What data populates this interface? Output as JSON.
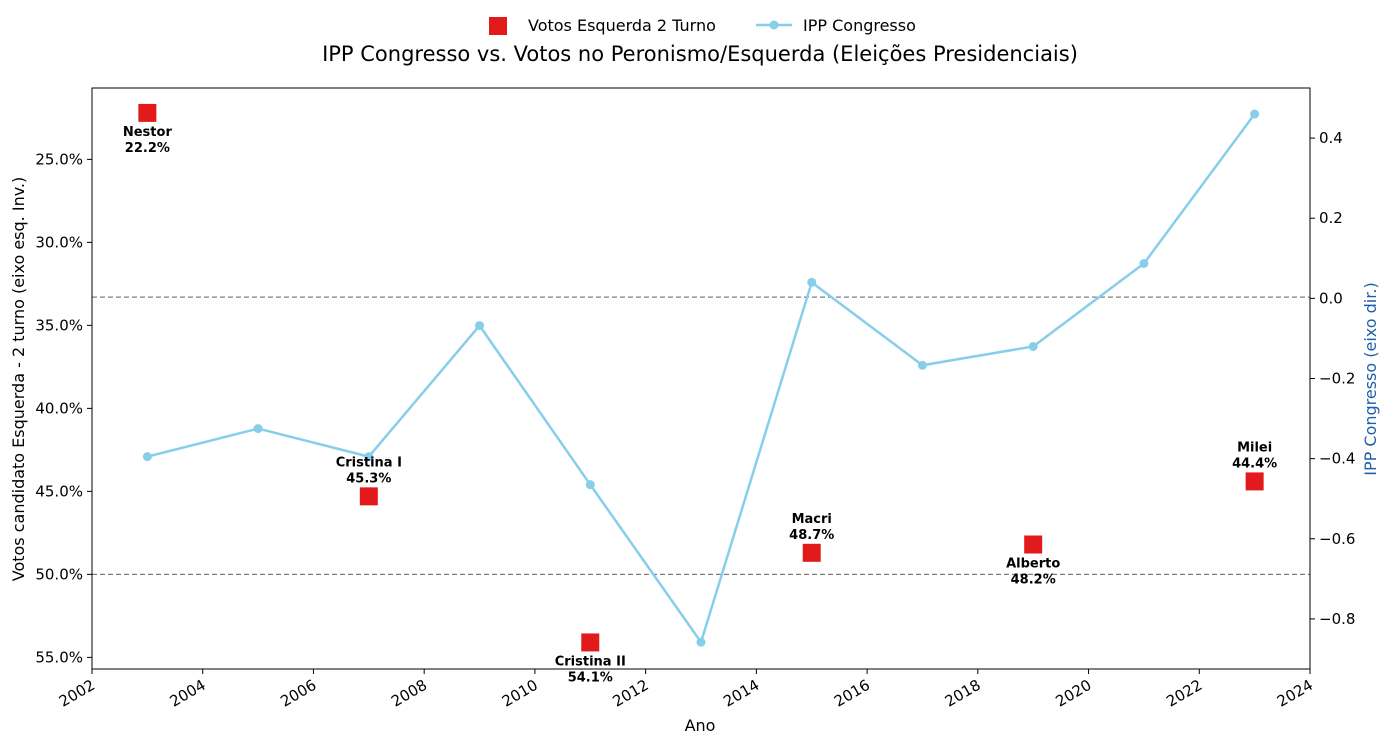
{
  "chart_data": {
    "type": "line",
    "title": "IPP Congresso vs. Votos no Peronismo/Esquerda (Eleições Presidenciais)",
    "xlabel": "Ano",
    "ylabel_left": "Votos candidato Esquerda - 2 turno (eixo esq. Inv.)",
    "ylabel_right": "IPP Congresso (eixo dir.)",
    "xlim": [
      2002,
      2024
    ],
    "x_ticks": [
      2002,
      2004,
      2006,
      2008,
      2010,
      2012,
      2014,
      2016,
      2018,
      2020,
      2022,
      2024
    ],
    "left_axis": {
      "inverted": true,
      "lim": [
        20.7,
        55.7
      ],
      "ticks": [
        25,
        30,
        35,
        40,
        45,
        50,
        55
      ],
      "tick_labels": [
        "25.0%",
        "30.0%",
        "35.0%",
        "40.0%",
        "45.0%",
        "50.0%",
        "55.0%"
      ]
    },
    "right_axis": {
      "lim": [
        -0.925,
        0.525
      ],
      "ticks": [
        -0.8,
        -0.6,
        -0.4,
        -0.2,
        0.0,
        0.2,
        0.4
      ],
      "tick_labels": [
        "−0.8",
        "−0.6",
        "−0.4",
        "−0.2",
        "0.0",
        "0.2",
        "0.4"
      ],
      "color": "#1f5fa6"
    },
    "reference_lines_left": [
      33.3,
      50.0
    ],
    "legend": {
      "placement": "top-center"
    },
    "series": [
      {
        "name": "Votos Esquerda 2 Turno",
        "axis": "left",
        "kind": "square-marker",
        "color": "#e31a1c",
        "points": [
          {
            "x": 2003,
            "y": 22.2,
            "label": "Nestor",
            "value_label": "22.2%",
            "label_pos": "below"
          },
          {
            "x": 2007,
            "y": 45.3,
            "label": "Cristina I",
            "value_label": "45.3%",
            "label_pos": "above"
          },
          {
            "x": 2011,
            "y": 54.1,
            "label": "Cristina II",
            "value_label": "54.1%",
            "label_pos": "below"
          },
          {
            "x": 2015,
            "y": 48.7,
            "label": "Macri",
            "value_label": "48.7%",
            "label_pos": "above"
          },
          {
            "x": 2019,
            "y": 48.2,
            "label": "Alberto",
            "value_label": "48.2%",
            "label_pos": "below"
          },
          {
            "x": 2023,
            "y": 44.4,
            "label": "Milei",
            "value_label": "44.4%",
            "label_pos": "above"
          }
        ]
      },
      {
        "name": "IPP Congresso",
        "axis": "right",
        "kind": "line-circle",
        "color": "#87ceeb",
        "x": [
          2003,
          2005,
          2007,
          2009,
          2011,
          2013,
          2015,
          2017,
          2019,
          2021,
          2023
        ],
        "y": [
          -0.395,
          -0.325,
          -0.395,
          -0.068,
          -0.465,
          -0.858,
          0.04,
          -0.167,
          -0.12,
          0.087,
          0.46
        ]
      }
    ]
  }
}
